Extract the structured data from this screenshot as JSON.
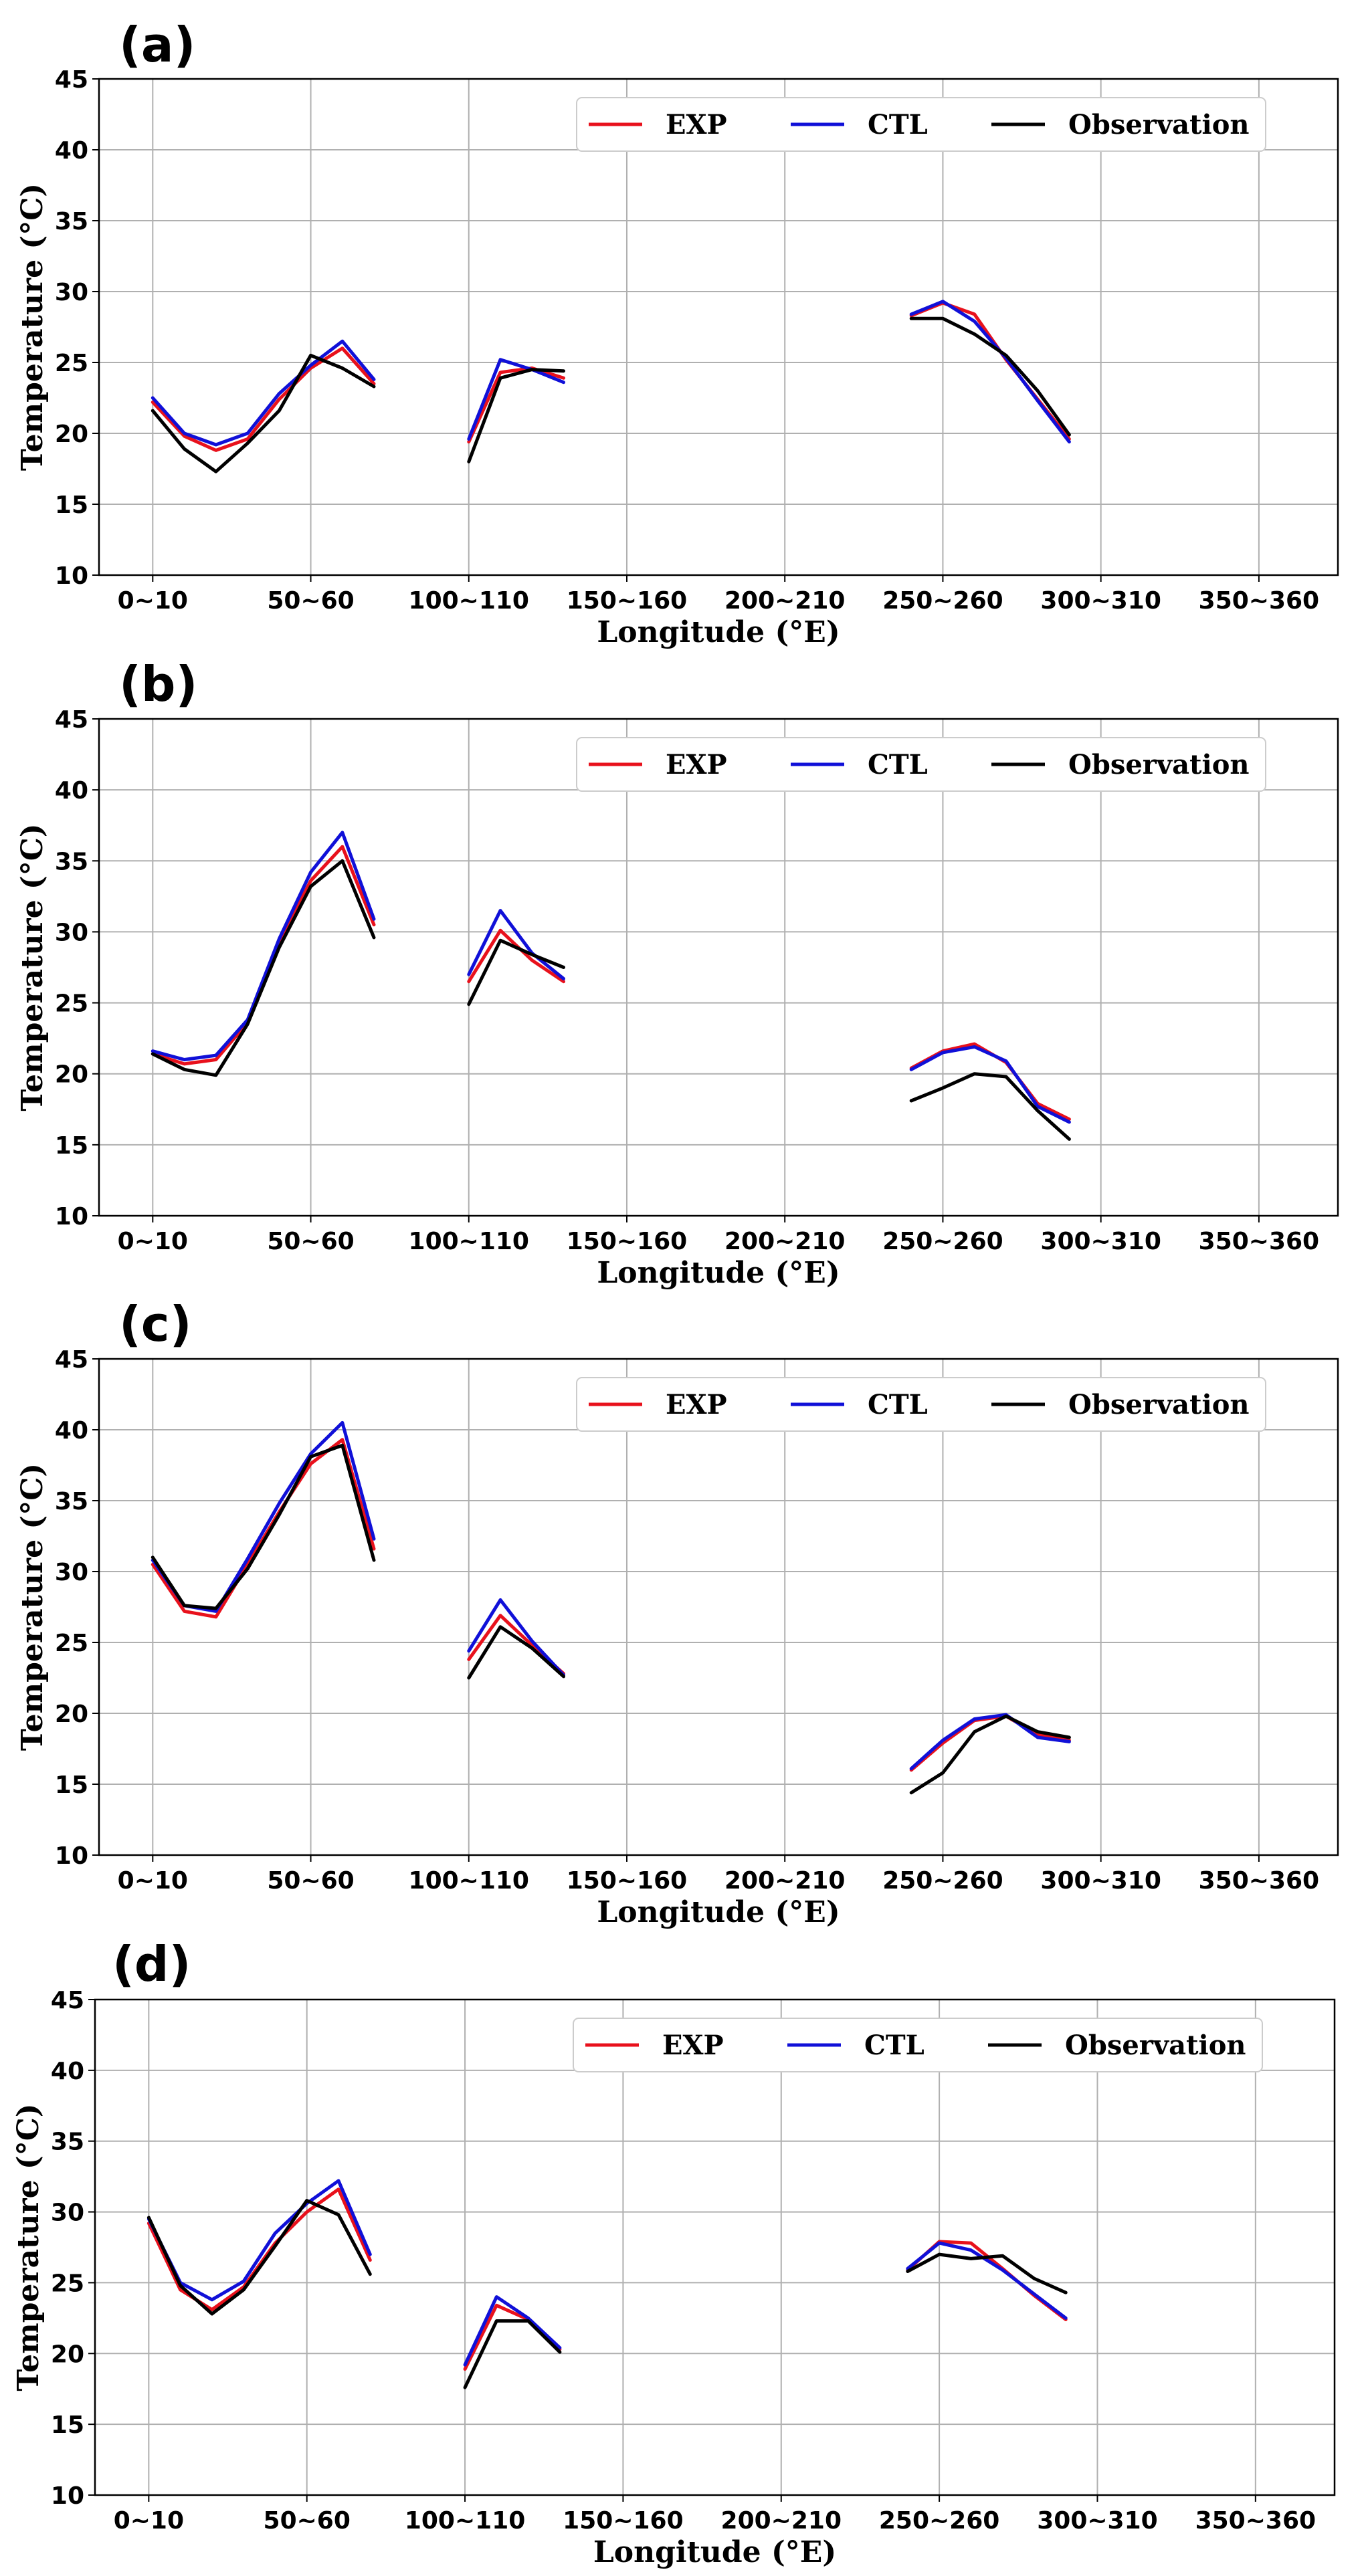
{
  "figure": {
    "legend_colors": {
      "EXP": "#e8111c",
      "CTL": "#1010d8",
      "Observation": "#000000"
    }
  },
  "chart_data": [
    {
      "type": "line",
      "panel_label": "(a)",
      "xlabel": "Longitude (°E)",
      "ylabel": "Temperature (°C)",
      "xlim": [
        -1.7,
        37.5
      ],
      "ylim": [
        10,
        45
      ],
      "yticks": [
        10,
        15,
        20,
        25,
        30,
        35,
        40,
        45
      ],
      "xtick_positions": [
        0,
        5,
        10,
        15,
        20,
        25,
        30,
        35
      ],
      "xtick_labels": [
        "0~10",
        "50~60",
        "100~110",
        "150~160",
        "200~210",
        "250~260",
        "300~310",
        "350~360"
      ],
      "grid": true,
      "legend": "top-right",
      "series": [
        {
          "name": "EXP",
          "color": "#e8111c",
          "segments": [
            {
              "x": [
                0,
                1,
                2,
                3,
                4,
                5,
                6,
                7
              ],
              "y": [
                22.2,
                19.8,
                18.8,
                19.6,
                22.4,
                24.6,
                26.0,
                23.5
              ]
            },
            {
              "x": [
                10,
                11,
                12,
                13
              ],
              "y": [
                19.4,
                24.3,
                24.6,
                23.9
              ]
            },
            {
              "x": [
                24,
                25,
                26,
                27,
                28,
                29
              ],
              "y": [
                28.3,
                29.2,
                28.4,
                25.2,
                22.4,
                19.6
              ]
            }
          ]
        },
        {
          "name": "CTL",
          "color": "#1010d8",
          "segments": [
            {
              "x": [
                0,
                1,
                2,
                3,
                4,
                5,
                6,
                7
              ],
              "y": [
                22.5,
                20.0,
                19.2,
                20.0,
                22.8,
                24.8,
                26.5,
                23.8
              ]
            },
            {
              "x": [
                10,
                11,
                12,
                13
              ],
              "y": [
                19.6,
                25.2,
                24.5,
                23.6
              ]
            },
            {
              "x": [
                24,
                25,
                26,
                27,
                28,
                29
              ],
              "y": [
                28.4,
                29.3,
                27.9,
                25.3,
                22.3,
                19.4
              ]
            }
          ]
        },
        {
          "name": "Observation",
          "color": "#000000",
          "segments": [
            {
              "x": [
                0,
                1,
                2,
                3,
                4,
                5,
                6,
                7
              ],
              "y": [
                21.6,
                18.9,
                17.3,
                19.3,
                21.6,
                25.5,
                24.6,
                23.3
              ]
            },
            {
              "x": [
                10,
                11,
                12,
                13
              ],
              "y": [
                18.0,
                23.9,
                24.5,
                24.4
              ]
            },
            {
              "x": [
                24,
                25,
                26,
                27,
                28,
                29
              ],
              "y": [
                28.1,
                28.1,
                27.0,
                25.5,
                23.0,
                19.9
              ]
            }
          ]
        }
      ]
    },
    {
      "type": "line",
      "panel_label": "(b)",
      "xlabel": "Longitude (°E)",
      "ylabel": "Temperature (°C)",
      "xlim": [
        -1.7,
        37.5
      ],
      "ylim": [
        10,
        45
      ],
      "yticks": [
        10,
        15,
        20,
        25,
        30,
        35,
        40,
        45
      ],
      "xtick_positions": [
        0,
        5,
        10,
        15,
        20,
        25,
        30,
        35
      ],
      "xtick_labels": [
        "0~10",
        "50~60",
        "100~110",
        "150~160",
        "200~210",
        "250~260",
        "300~310",
        "350~360"
      ],
      "grid": true,
      "legend": "top-right",
      "series": [
        {
          "name": "EXP",
          "color": "#e8111c",
          "segments": [
            {
              "x": [
                0,
                1,
                2,
                3,
                4,
                5,
                6,
                7
              ],
              "y": [
                21.4,
                20.7,
                21.0,
                23.6,
                29.3,
                33.6,
                36.0,
                30.5
              ]
            },
            {
              "x": [
                10,
                11,
                12,
                13
              ],
              "y": [
                26.5,
                30.1,
                28.0,
                26.5
              ]
            },
            {
              "x": [
                24,
                25,
                26,
                27,
                28,
                29
              ],
              "y": [
                20.4,
                21.6,
                22.1,
                20.8,
                17.9,
                16.8
              ]
            }
          ]
        },
        {
          "name": "CTL",
          "color": "#1010d8",
          "segments": [
            {
              "x": [
                0,
                1,
                2,
                3,
                4,
                5,
                6,
                7
              ],
              "y": [
                21.6,
                21.0,
                21.3,
                23.8,
                29.5,
                34.2,
                37.0,
                30.9
              ]
            },
            {
              "x": [
                10,
                11,
                12,
                13
              ],
              "y": [
                27.0,
                31.5,
                28.5,
                26.7
              ]
            },
            {
              "x": [
                24,
                25,
                26,
                27,
                28,
                29
              ],
              "y": [
                20.3,
                21.5,
                21.9,
                20.9,
                17.7,
                16.6
              ]
            }
          ]
        },
        {
          "name": "Observation",
          "color": "#000000",
          "segments": [
            {
              "x": [
                0,
                1,
                2,
                3,
                4,
                5,
                6,
                7
              ],
              "y": [
                21.4,
                20.3,
                19.9,
                23.5,
                28.9,
                33.2,
                35.0,
                29.6
              ]
            },
            {
              "x": [
                10,
                11,
                12,
                13
              ],
              "y": [
                24.9,
                29.4,
                28.4,
                27.5
              ]
            },
            {
              "x": [
                24,
                25,
                26,
                27,
                28,
                29
              ],
              "y": [
                18.1,
                19.0,
                20.0,
                19.8,
                17.4,
                15.4
              ]
            }
          ]
        }
      ]
    },
    {
      "type": "line",
      "panel_label": "(c)",
      "xlabel": "Longitude (°E)",
      "ylabel": "Temperature (°C)",
      "xlim": [
        -1.7,
        37.5
      ],
      "ylim": [
        10,
        45
      ],
      "yticks": [
        10,
        15,
        20,
        25,
        30,
        35,
        40,
        45
      ],
      "xtick_positions": [
        0,
        5,
        10,
        15,
        20,
        25,
        30,
        35
      ],
      "xtick_labels": [
        "0~10",
        "50~60",
        "100~110",
        "150~160",
        "200~210",
        "250~260",
        "300~310",
        "350~360"
      ],
      "grid": true,
      "legend": "top-right",
      "series": [
        {
          "name": "EXP",
          "color": "#e8111c",
          "segments": [
            {
              "x": [
                0,
                1,
                2,
                3,
                4,
                5,
                6,
                7
              ],
              "y": [
                30.5,
                27.2,
                26.8,
                30.5,
                34.2,
                37.6,
                39.3,
                31.6
              ]
            },
            {
              "x": [
                10,
                11,
                12,
                13
              ],
              "y": [
                23.8,
                26.9,
                24.8,
                22.8
              ]
            },
            {
              "x": [
                24,
                25,
                26,
                27,
                28,
                29
              ],
              "y": [
                16.0,
                17.9,
                19.5,
                19.8,
                18.5,
                18.1
              ]
            }
          ]
        },
        {
          "name": "CTL",
          "color": "#1010d8",
          "segments": [
            {
              "x": [
                0,
                1,
                2,
                3,
                4,
                5,
                6,
                7
              ],
              "y": [
                30.8,
                27.6,
                27.2,
                30.9,
                34.8,
                38.3,
                40.5,
                32.3
              ]
            },
            {
              "x": [
                10,
                11,
                12,
                13
              ],
              "y": [
                24.4,
                28.0,
                25.1,
                22.7
              ]
            },
            {
              "x": [
                24,
                25,
                26,
                27,
                28,
                29
              ],
              "y": [
                16.1,
                18.1,
                19.6,
                19.9,
                18.3,
                18.0
              ]
            }
          ]
        },
        {
          "name": "Observation",
          "color": "#000000",
          "segments": [
            {
              "x": [
                0,
                1,
                2,
                3,
                4,
                5,
                6,
                7
              ],
              "y": [
                31.0,
                27.6,
                27.4,
                30.2,
                34.0,
                38.1,
                38.9,
                30.8
              ]
            },
            {
              "x": [
                10,
                11,
                12,
                13
              ],
              "y": [
                22.5,
                26.1,
                24.6,
                22.6
              ]
            },
            {
              "x": [
                24,
                25,
                26,
                27,
                28,
                29
              ],
              "y": [
                14.4,
                15.8,
                18.7,
                19.8,
                18.7,
                18.3
              ]
            }
          ]
        }
      ]
    },
    {
      "type": "line",
      "panel_label": "(d)",
      "xlabel": "Longitude (°E)",
      "ylabel": "Temperature (°C)",
      "xlim": [
        -1.7,
        37.5
      ],
      "ylim": [
        10,
        45
      ],
      "yticks": [
        10,
        15,
        20,
        25,
        30,
        35,
        40,
        45
      ],
      "xtick_positions": [
        0,
        5,
        10,
        15,
        20,
        25,
        30,
        35
      ],
      "xtick_labels": [
        "0~10",
        "50~60",
        "100~110",
        "150~160",
        "200~210",
        "250~260",
        "300~310",
        "350~360"
      ],
      "grid": true,
      "legend": "top-right",
      "series": [
        {
          "name": "EXP",
          "color": "#e8111c",
          "segments": [
            {
              "x": [
                0,
                1,
                2,
                3,
                4,
                5,
                6,
                7
              ],
              "y": [
                29.2,
                24.5,
                23.1,
                24.7,
                27.8,
                30.0,
                31.6,
                26.6
              ]
            },
            {
              "x": [
                10,
                11,
                12,
                13
              ],
              "y": [
                18.9,
                23.4,
                22.4,
                20.3
              ]
            },
            {
              "x": [
                24,
                25,
                26,
                27,
                28,
                29
              ],
              "y": [
                25.9,
                27.9,
                27.8,
                26.0,
                24.1,
                22.4
              ]
            }
          ]
        },
        {
          "name": "CTL",
          "color": "#1010d8",
          "segments": [
            {
              "x": [
                0,
                1,
                2,
                3,
                4,
                5,
                6,
                7
              ],
              "y": [
                29.5,
                25.0,
                23.8,
                25.1,
                28.5,
                30.6,
                32.2,
                27.0
              ]
            },
            {
              "x": [
                10,
                11,
                12,
                13
              ],
              "y": [
                19.2,
                24.0,
                22.5,
                20.4
              ]
            },
            {
              "x": [
                24,
                25,
                26,
                27,
                28,
                29
              ],
              "y": [
                26.0,
                27.8,
                27.3,
                25.9,
                24.2,
                22.5
              ]
            }
          ]
        },
        {
          "name": "Observation",
          "color": "#000000",
          "segments": [
            {
              "x": [
                0,
                1,
                2,
                3,
                4,
                5,
                6,
                7
              ],
              "y": [
                29.6,
                24.8,
                22.8,
                24.5,
                27.6,
                30.8,
                29.8,
                25.6
              ]
            },
            {
              "x": [
                10,
                11,
                12,
                13
              ],
              "y": [
                17.6,
                22.3,
                22.3,
                20.1
              ]
            },
            {
              "x": [
                24,
                25,
                26,
                27,
                28,
                29
              ],
              "y": [
                25.8,
                27.0,
                26.7,
                26.9,
                25.3,
                24.3
              ]
            }
          ]
        }
      ]
    }
  ]
}
